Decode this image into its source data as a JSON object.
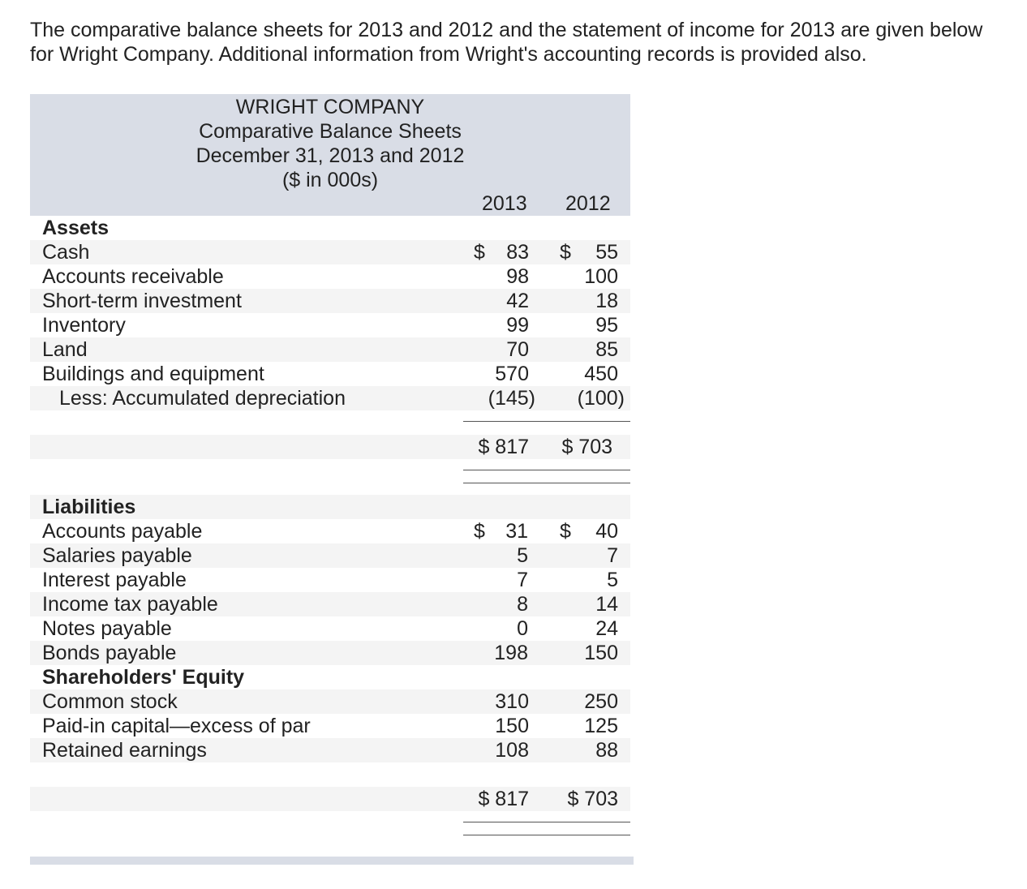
{
  "intro": {
    "line1": "The comparative balance sheets for 2013 and 2012 and the statement of income for 2013 are given below",
    "line2": "for Wright Company. Additional information from Wright's accounting records is provided also."
  },
  "statement": {
    "company": "WRIGHT COMPANY",
    "title": "Comparative Balance Sheets",
    "date": "December 31, 2013 and 2012",
    "units": "($ in 000s)",
    "year1": "2013",
    "year2": "2012"
  },
  "assets": {
    "heading": "Assets",
    "rows": [
      {
        "label": "Cash",
        "cur1": "$",
        "v1": "83",
        "cur2": "$",
        "v2": "55"
      },
      {
        "label": "Accounts receivable",
        "v1": "98",
        "v2": "100"
      },
      {
        "label": "Short-term investment",
        "v1": "42",
        "v2": "18"
      },
      {
        "label": "Inventory",
        "v1": "99",
        "v2": "95"
      },
      {
        "label": "Land",
        "v1": "70",
        "v2": "85"
      },
      {
        "label": "Buildings and equipment",
        "v1": "570",
        "v2": "450"
      },
      {
        "label": "Less: Accumulated depreciation",
        "v1": "(145)",
        "v2": "(100)"
      }
    ],
    "total": {
      "v1": "$ 817",
      "v2": "$ 703"
    }
  },
  "liabilities": {
    "heading": "Liabilities",
    "rows": [
      {
        "label": "Accounts payable",
        "cur1": "$",
        "v1": "31",
        "cur2": "$",
        "v2": "40"
      },
      {
        "label": "Salaries payable",
        "v1": "5",
        "v2": "7"
      },
      {
        "label": "Interest payable",
        "v1": "7",
        "v2": "5"
      },
      {
        "label": "Income tax payable",
        "v1": "8",
        "v2": "14"
      },
      {
        "label": "Notes payable",
        "v1": "0",
        "v2": "24"
      },
      {
        "label": "Bonds payable",
        "v1": "198",
        "v2": "150"
      }
    ]
  },
  "equity": {
    "heading": "Shareholders' Equity",
    "rows": [
      {
        "label": "Common stock",
        "v1": "310",
        "v2": "250"
      },
      {
        "label": "Paid-in capital—excess of par",
        "v1": "150",
        "v2": "125"
      },
      {
        "label": "Retained earnings",
        "v1": "108",
        "v2": "88"
      }
    ],
    "total": {
      "v1": "$ 817",
      "v2": "$ 703"
    }
  }
}
